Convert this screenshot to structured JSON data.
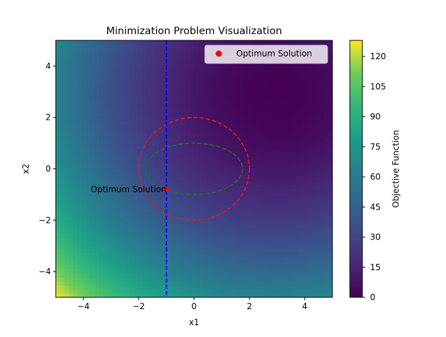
{
  "chart_data": {
    "type": "heatmap",
    "title": "Minimization Problem Visualization",
    "xlabel": "x1",
    "ylabel": "x2",
    "xlim": [
      -5,
      5
    ],
    "ylim": [
      -5,
      5
    ],
    "xticks": [
      -4,
      -2,
      0,
      2,
      4
    ],
    "yticks": [
      -4,
      -2,
      0,
      2,
      4
    ],
    "xtick_labels": [
      "−4",
      "−2",
      "0",
      "2",
      "4"
    ],
    "ytick_labels": [
      "−4",
      "−2",
      "0",
      "2",
      "4"
    ],
    "colorbar": {
      "label": "Objective Function",
      "range": [
        0,
        128
      ],
      "ticks": [
        0,
        15,
        30,
        45,
        60,
        75,
        90,
        105,
        120
      ],
      "tick_labels": [
        "0",
        "15",
        "30",
        "45",
        "60",
        "75",
        "90",
        "105",
        "120"
      ],
      "colormap": "viridis"
    },
    "objective_center": [
      3,
      3
    ],
    "constraints": [
      {
        "kind": "circle",
        "center": [
          0,
          0
        ],
        "radius": 2,
        "color": "#e41a1c",
        "style": "dashed"
      },
      {
        "kind": "ellipse",
        "center": [
          0,
          0
        ],
        "rx": 1.75,
        "ry": 1,
        "color": "#1a7a1a",
        "style": "dashed"
      },
      {
        "kind": "vline",
        "x": -1,
        "color": "#0000ff",
        "style": "dashed"
      }
    ],
    "optimum": {
      "x": -1,
      "y": -0.8,
      "color": "#ff0000"
    },
    "annotation": "Optimum Solution",
    "legend": {
      "placement": "top-right",
      "entries": [
        {
          "label": "Optimum Solution",
          "color": "#ff0000"
        }
      ]
    },
    "grid": false
  }
}
